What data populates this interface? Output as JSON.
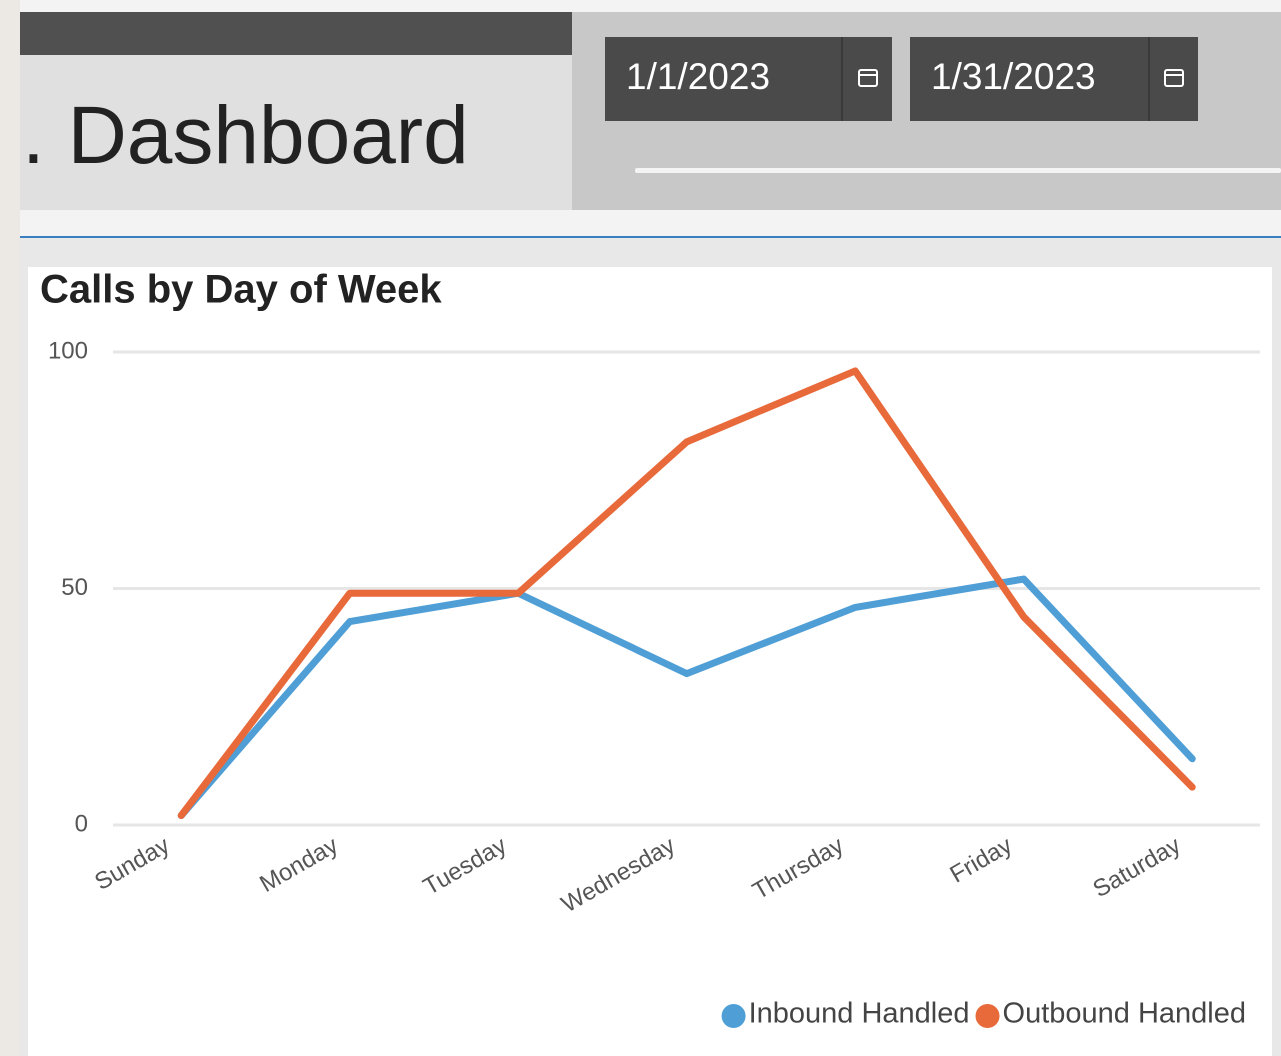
{
  "header": {
    "title": ". Dashboard",
    "start_date": "1/1/2023",
    "end_date": "1/31/2023"
  },
  "chart_data": {
    "type": "line",
    "title": "Calls by Day of Week",
    "categories": [
      "Sunday",
      "Monday",
      "Tuesday",
      "Wednesday",
      "Thursday",
      "Friday",
      "Saturday"
    ],
    "series": [
      {
        "name": "Inbound Handled",
        "color": "#4f9fd6",
        "values": [
          2,
          43,
          49,
          32,
          46,
          52,
          14
        ]
      },
      {
        "name": "Outbound Handled",
        "color": "#e8693a",
        "values": [
          2,
          49,
          49,
          81,
          96,
          44,
          8
        ]
      }
    ],
    "ylim": [
      0,
      100
    ],
    "yticks": [
      0,
      50,
      100
    ],
    "grid": true,
    "legend": "bottom-right"
  }
}
